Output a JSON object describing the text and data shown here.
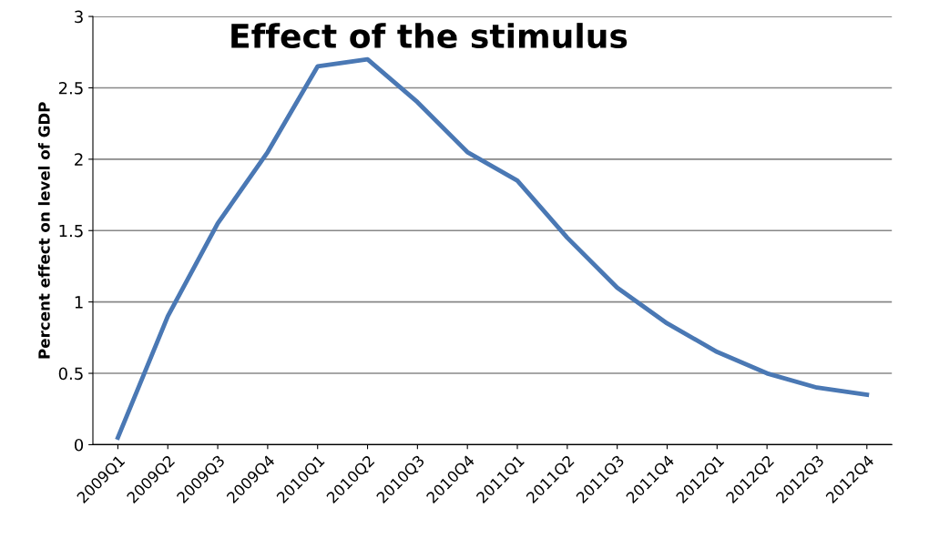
{
  "chart_data": {
    "type": "line",
    "title": "Effect of the stimulus",
    "ylabel": "Percent effect on level of GDP",
    "categories": [
      "2009Q1",
      "2009Q2",
      "2009Q3",
      "2009Q4",
      "2010Q1",
      "2010Q2",
      "2010Q3",
      "2010Q4",
      "2011Q1",
      "2011Q2",
      "2011Q3",
      "2011Q4",
      "2012Q1",
      "2012Q2",
      "2012Q3",
      "2012Q4"
    ],
    "series": [
      {
        "color": "#4a78b4",
        "values": [
          0.05,
          0.9,
          1.55,
          2.05,
          2.65,
          2.7,
          2.4,
          2.05,
          1.85,
          1.45,
          1.1,
          0.85,
          0.65,
          0.5,
          0.4,
          0.35
        ]
      }
    ],
    "ylim": [
      0,
      3
    ],
    "yticks": [
      0,
      0.5,
      1,
      1.5,
      2,
      2.5,
      3
    ],
    "grid": "y",
    "marker": "none",
    "line_style": "solid"
  }
}
